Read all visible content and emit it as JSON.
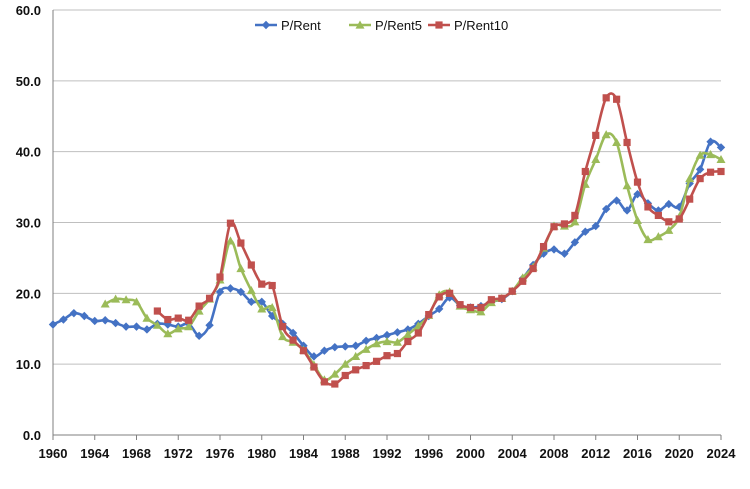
{
  "chart_data": {
    "type": "line",
    "title": "",
    "xlabel": "",
    "ylabel": "",
    "xlim": [
      1960,
      2024
    ],
    "ylim": [
      0,
      60
    ],
    "xticks": [
      1960,
      1964,
      1968,
      1972,
      1976,
      1980,
      1984,
      1988,
      1992,
      1996,
      2000,
      2004,
      2008,
      2012,
      2016,
      2020,
      2024
    ],
    "yticks": [
      0,
      10,
      20,
      30,
      40,
      50,
      60
    ],
    "ytick_labels": [
      "0.0",
      "10.0",
      "20.0",
      "30.0",
      "40.0",
      "50.0",
      "60.0"
    ],
    "grid": "horizontal",
    "legend_position": "top-center",
    "series": [
      {
        "name": "P/Rent",
        "color": "#4472C4",
        "marker": "diamond",
        "x": [
          1960,
          1961,
          1962,
          1963,
          1964,
          1965,
          1966,
          1967,
          1968,
          1969,
          1970,
          1971,
          1972,
          1973,
          1974,
          1975,
          1976,
          1977,
          1978,
          1979,
          1980,
          1981,
          1982,
          1983,
          1984,
          1985,
          1986,
          1987,
          1988,
          1989,
          1990,
          1991,
          1992,
          1993,
          1994,
          1995,
          1996,
          1997,
          1998,
          1999,
          2000,
          2001,
          2002,
          2003,
          2004,
          2005,
          2006,
          2007,
          2008,
          2009,
          2010,
          2011,
          2012,
          2013,
          2014,
          2015,
          2016,
          2017,
          2018,
          2019,
          2020,
          2021,
          2022,
          2023,
          2024
        ],
        "y": [
          15.6,
          16.3,
          17.2,
          16.8,
          16.1,
          16.2,
          15.8,
          15.3,
          15.3,
          14.9,
          15.7,
          15.6,
          15.3,
          15.7,
          14.0,
          15.5,
          20.2,
          20.7,
          20.2,
          18.8,
          18.8,
          16.8,
          15.7,
          14.4,
          12.6,
          11.1,
          11.9,
          12.4,
          12.5,
          12.6,
          13.3,
          13.7,
          14.1,
          14.5,
          14.9,
          15.7,
          16.8,
          17.8,
          19.4,
          18.3,
          18.0,
          18.2,
          18.8,
          19.2,
          20.3,
          22.1,
          24.0,
          25.6,
          26.2,
          25.6,
          27.2,
          28.7,
          29.5,
          31.9,
          33.1,
          31.7,
          34.0,
          32.7,
          31.7,
          32.6,
          32.2,
          35.5,
          37.5,
          41.4,
          40.6
        ]
      },
      {
        "name": "P/Rent5",
        "color": "#9BBB59",
        "marker": "triangle",
        "x": [
          1965,
          1966,
          1967,
          1968,
          1969,
          1970,
          1971,
          1972,
          1973,
          1974,
          1975,
          1976,
          1977,
          1978,
          1979,
          1980,
          1981,
          1982,
          1983,
          1984,
          1985,
          1986,
          1987,
          1988,
          1989,
          1990,
          1991,
          1992,
          1993,
          1994,
          1995,
          1996,
          1997,
          1998,
          1999,
          2000,
          2001,
          2002,
          2003,
          2004,
          2005,
          2006,
          2007,
          2008,
          2009,
          2010,
          2011,
          2012,
          2013,
          2014,
          2015,
          2016,
          2017,
          2018,
          2019,
          2020,
          2021,
          2022,
          2023,
          2024
        ],
        "y": [
          18.5,
          19.2,
          19.1,
          18.8,
          16.5,
          15.5,
          14.3,
          15.0,
          15.3,
          17.5,
          19.2,
          21.9,
          27.4,
          23.5,
          20.4,
          17.8,
          18.0,
          13.9,
          13.1,
          12.0,
          9.9,
          7.8,
          8.6,
          10.0,
          11.1,
          12.1,
          12.9,
          13.2,
          13.1,
          14.2,
          15.4,
          16.9,
          19.8,
          20.2,
          18.2,
          17.7,
          17.4,
          18.7,
          19.3,
          20.3,
          22.2,
          23.7,
          26.4,
          29.5,
          29.5,
          30.1,
          35.4,
          38.9,
          42.4,
          41.3,
          35.2,
          30.3,
          27.6,
          28.0,
          28.9,
          30.8,
          36.2,
          39.5,
          39.6,
          38.9
        ]
      },
      {
        "name": "P/Rent10",
        "color": "#C0504D",
        "marker": "square",
        "x": [
          1970,
          1971,
          1972,
          1973,
          1974,
          1975,
          1976,
          1977,
          1978,
          1979,
          1980,
          1981,
          1982,
          1983,
          1984,
          1985,
          1986,
          1987,
          1988,
          1989,
          1990,
          1991,
          1992,
          1993,
          1994,
          1995,
          1996,
          1997,
          1998,
          1999,
          2000,
          2001,
          2002,
          2003,
          2004,
          2005,
          2006,
          2007,
          2008,
          2009,
          2010,
          2011,
          2012,
          2013,
          2014,
          2015,
          2016,
          2017,
          2018,
          2019,
          2020,
          2021,
          2022,
          2023,
          2024
        ],
        "y": [
          17.5,
          16.3,
          16.5,
          16.2,
          18.2,
          19.3,
          22.3,
          29.9,
          27.1,
          24.0,
          21.3,
          21.1,
          15.3,
          13.4,
          11.9,
          9.6,
          7.5,
          7.2,
          8.4,
          9.2,
          9.8,
          10.4,
          11.2,
          11.5,
          13.2,
          14.4,
          17.0,
          19.5,
          20.0,
          18.4,
          18.0,
          18.0,
          19.1,
          19.3,
          20.3,
          21.7,
          23.5,
          26.6,
          29.4,
          29.8,
          31.0,
          37.2,
          42.3,
          47.6,
          47.4,
          41.3,
          35.7,
          32.2,
          31.0,
          30.1,
          30.5,
          33.3,
          36.2,
          37.1,
          37.2
        ]
      }
    ]
  }
}
